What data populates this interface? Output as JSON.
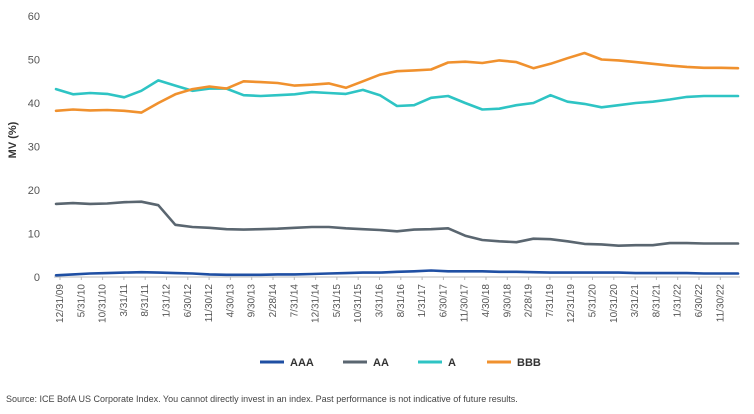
{
  "source": "Source: ICE BofA US Corporate Index. You cannot directly invest in an index. Past performance is not indicative of future results.",
  "chart_data": {
    "type": "line",
    "title": "",
    "ylabel": "MV (%)",
    "xlabel": "",
    "ylim": [
      0,
      60
    ],
    "yticks": [
      0,
      10,
      20,
      30,
      40,
      50,
      60
    ],
    "grid": false,
    "legend": "bottom-center",
    "x_start": "12/31/09",
    "x_end": "3/31/23",
    "x_tick_labels": [
      "12/31/09",
      "5/31/10",
      "10/31/10",
      "3/31/11",
      "8/31/11",
      "1/31/12",
      "6/30/12",
      "11/30/12",
      "4/30/13",
      "9/30/13",
      "2/28/14",
      "7/31/14",
      "12/31/14",
      "5/31/15",
      "10/31/15",
      "3/31/16",
      "8/31/16",
      "1/31/17",
      "6/30/17",
      "11/30/17",
      "4/30/18",
      "9/30/18",
      "2/28/19",
      "7/31/19",
      "12/31/19",
      "5/31/20",
      "10/31/20",
      "3/31/21",
      "8/31/21",
      "1/31/22",
      "6/30/22",
      "11/30/22"
    ],
    "series": [
      {
        "name": "AAA",
        "color": "#1f4fa3",
        "values": [
          0.4,
          0.6,
          0.8,
          0.9,
          1.0,
          1.1,
          1.0,
          0.9,
          0.8,
          0.6,
          0.5,
          0.5,
          0.5,
          0.6,
          0.6,
          0.7,
          0.8,
          0.9,
          1.0,
          1.0,
          1.2,
          1.3,
          1.5,
          1.3,
          1.3,
          1.3,
          1.2,
          1.2,
          1.1,
          1.0,
          1.0,
          1.0,
          1.0,
          1.0,
          0.9,
          0.9,
          0.9,
          0.9,
          0.8,
          0.8,
          0.8
        ]
      },
      {
        "name": "AA",
        "color": "#5a6670",
        "values": [
          16.8,
          17.0,
          16.8,
          16.9,
          17.2,
          17.3,
          16.5,
          12.0,
          11.5,
          11.3,
          11.0,
          10.9,
          11.0,
          11.1,
          11.3,
          11.5,
          11.5,
          11.2,
          11.0,
          10.8,
          10.5,
          10.9,
          11.0,
          11.2,
          9.5,
          8.5,
          8.2,
          8.0,
          8.8,
          8.7,
          8.2,
          7.6,
          7.5,
          7.2,
          7.3,
          7.3,
          7.8,
          7.8,
          7.7,
          7.7,
          7.7
        ]
      },
      {
        "name": "A",
        "color": "#2ec4c4",
        "values": [
          43.2,
          42.0,
          42.3,
          42.1,
          41.3,
          42.8,
          45.2,
          44.0,
          42.8,
          43.3,
          43.3,
          41.8,
          41.6,
          41.8,
          42.0,
          42.5,
          42.3,
          42.1,
          43.0,
          41.8,
          39.3,
          39.5,
          41.2,
          41.6,
          40.0,
          38.5,
          38.7,
          39.5,
          40.0,
          41.8,
          40.3,
          39.8,
          39.0,
          39.5,
          40.0,
          40.3,
          40.8,
          41.4,
          41.6,
          41.6,
          41.6
        ]
      },
      {
        "name": "BBB",
        "color": "#f0912e",
        "values": [
          38.2,
          38.5,
          38.3,
          38.4,
          38.2,
          37.8,
          40.0,
          42.0,
          43.2,
          43.8,
          43.3,
          45.0,
          44.8,
          44.6,
          44.0,
          44.2,
          44.5,
          43.5,
          45.0,
          46.5,
          47.3,
          47.5,
          47.7,
          49.3,
          49.5,
          49.2,
          49.8,
          49.4,
          48.0,
          49.0,
          50.3,
          51.5,
          50.0,
          49.8,
          49.4,
          49.0,
          48.6,
          48.3,
          48.1,
          48.1,
          48.0
        ]
      }
    ]
  }
}
